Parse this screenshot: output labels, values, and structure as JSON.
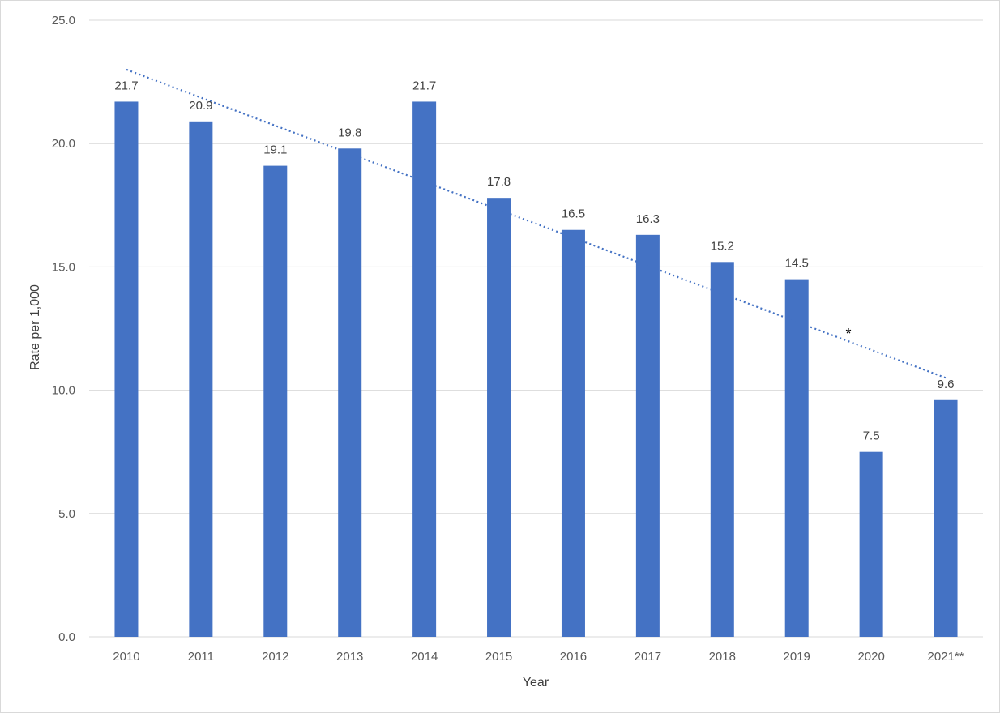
{
  "chart_data": {
    "type": "bar",
    "title": "",
    "xlabel": "Year",
    "ylabel": "Rate per 1,000",
    "categories": [
      "2010",
      "2011",
      "2012",
      "2013",
      "2014",
      "2015",
      "2016",
      "2017",
      "2018",
      "2019",
      "2020",
      "2021**"
    ],
    "values": [
      21.7,
      20.9,
      19.1,
      19.8,
      21.7,
      17.8,
      16.5,
      16.3,
      15.2,
      14.5,
      7.5,
      9.6
    ],
    "value_labels": [
      "21.7",
      "20.9",
      "19.1",
      "19.8",
      "21.7",
      "17.8",
      "16.5",
      "16.3",
      "15.2",
      "14.5",
      "7.5",
      "9.6"
    ],
    "ylim": [
      0,
      25
    ],
    "y_ticks": [
      "0.0",
      "5.0",
      "10.0",
      "15.0",
      "20.0",
      "25.0"
    ],
    "grid": true,
    "legend": "none",
    "trendline": {
      "type": "linear",
      "style": "dotted",
      "start": 23.0,
      "end": 10.5
    },
    "annotations": [
      "*"
    ],
    "colors": {
      "bar": "#4472C4",
      "trendline": "#4472C4",
      "grid": "#d9d9d9"
    }
  }
}
